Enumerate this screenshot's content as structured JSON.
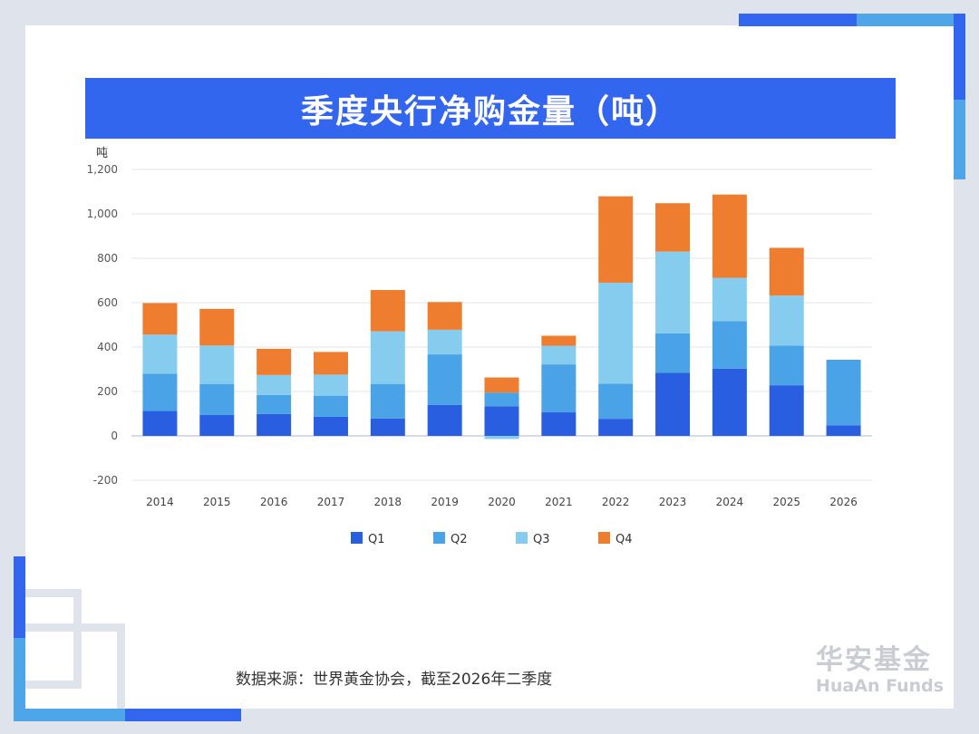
{
  "header": {
    "title": "季度央行净购金量（吨）"
  },
  "footer": {
    "source": "数据来源：世界黄金协会，截至2026年二季度"
  },
  "logo": {
    "name_cn": "华安基金",
    "name_en": "HuaAn Funds"
  },
  "colors": {
    "banner": "#3366ee",
    "Q1": "#2a5ee0",
    "Q2": "#49a3e6",
    "Q3": "#86ccee",
    "Q4": "#ee7d30"
  },
  "chart_data": {
    "type": "bar",
    "stacked": true,
    "ylabel": "吨",
    "ylim": [
      -200,
      1200
    ],
    "yticks": [
      -200,
      0,
      200,
      400,
      600,
      800,
      1000,
      1200
    ],
    "ytick_labels": [
      "-200",
      "0",
      "200",
      "400",
      "600",
      "800",
      "1,000",
      "1,200"
    ],
    "grid": true,
    "legend": "bottom",
    "categories": [
      "2014",
      "2015",
      "2016",
      "2017",
      "2018",
      "2019",
      "2020",
      "2021",
      "2022",
      "2023",
      "2024",
      "2025",
      "2026"
    ],
    "series": [
      {
        "name": "Q1",
        "values": [
          112,
          94,
          99,
          86,
          78,
          139,
          133,
          106,
          77,
          284,
          303,
          228,
          48
        ]
      },
      {
        "name": "Q2",
        "values": [
          168,
          140,
          85,
          95,
          156,
          228,
          62,
          216,
          158,
          178,
          214,
          178,
          295
        ]
      },
      {
        "name": "Q3",
        "values": [
          176,
          173,
          90,
          95,
          237,
          111,
          -14,
          84,
          455,
          368,
          195,
          226,
          0
        ]
      },
      {
        "name": "Q4",
        "values": [
          142,
          165,
          118,
          102,
          186,
          125,
          68,
          45,
          389,
          218,
          375,
          215,
          0
        ]
      }
    ]
  }
}
